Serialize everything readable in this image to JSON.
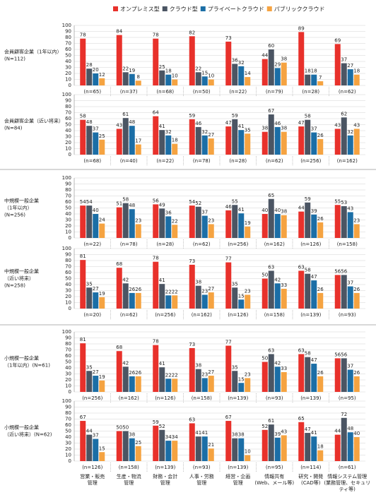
{
  "chart_data": [
    {
      "type": "bar",
      "title": [
        "会員顧客企業（1年以内）",
        "(N=112)"
      ],
      "series": [
        {
          "name": "オンプレミス型",
          "color": "#e8312b",
          "values": [
            78,
            84,
            78,
            82,
            73,
            44,
            89,
            69
          ]
        },
        {
          "name": "クラウド型",
          "color": "#4b5563",
          "values": [
            28,
            22,
            25,
            22,
            36,
            60,
            18,
            37
          ]
        },
        {
          "name": "プライベートクラウド",
          "color": "#1b6ea6",
          "values": [
            20,
            19,
            18,
            15,
            32,
            29,
            18,
            27
          ]
        },
        {
          "name": "パブリッククラウド",
          "color": "#f5a341",
          "values": [
            12,
            8,
            10,
            10,
            14,
            38,
            7,
            18
          ]
        }
      ],
      "n_labels": [
        "(n=65)",
        "(n=37)",
        "(n=68)",
        "(n=50)",
        "(n=22)",
        "(n=79)",
        "(n=28)",
        "(n=62)"
      ],
      "ylim": [
        0,
        100
      ],
      "yticks": [
        0,
        10,
        20,
        30,
        40,
        50,
        60,
        70,
        80,
        90,
        100
      ],
      "grid": true
    },
    {
      "type": "bar",
      "title": [
        "会員顧客企業（近い将来）",
        "(N=84)"
      ],
      "series": [
        {
          "values": [
            58,
            43,
            64,
            59,
            47,
            38,
            47,
            43
          ]
        },
        {
          "values": [
            48,
            61,
            41,
            46,
            59,
            67,
            58,
            62
          ]
        },
        {
          "values": [
            37,
            48,
            32,
            32,
            41,
            46,
            37,
            32
          ]
        },
        {
          "values": [
            25,
            17,
            18,
            27,
            35,
            38,
            26,
            43
          ]
        }
      ],
      "n_labels": [
        "(n=68)",
        "(n=40)",
        "(n=22)",
        "(n=78)",
        "(n=28)",
        "(n=62)",
        "(n=256)",
        "(n=162)"
      ],
      "ylim": [
        0,
        100
      ],
      "yticks": [
        0,
        10,
        20,
        30,
        40,
        50,
        60,
        70,
        80,
        90,
        100
      ],
      "grid": true
    },
    {
      "type": "bar",
      "title": [
        "中規模一般企業",
        "（1年以内）",
        "(N=256)"
      ],
      "series": [
        {
          "values": [
            54,
            51,
            56,
            54,
            46,
            40,
            44,
            55
          ]
        },
        {
          "values": [
            54,
            58,
            49,
            52,
            55,
            65,
            59,
            53
          ]
        },
        {
          "values": [
            40,
            48,
            36,
            37,
            41,
            40,
            39,
            43
          ]
        },
        {
          "values": [
            24,
            23,
            22,
            23,
            19,
            38,
            26,
            23
          ]
        }
      ],
      "n_labels": [
        "(n=22)",
        "(n=78)",
        "(n=28)",
        "(n=62)",
        "(n=256)",
        "(n=162)",
        "(n=126)",
        "(n=158)"
      ],
      "ylim": [
        0,
        100
      ],
      "yticks": [
        0,
        10,
        20,
        30,
        40,
        50,
        60,
        70,
        80,
        90,
        100
      ],
      "grid": true
    },
    {
      "type": "bar",
      "title": [
        "中規模一般企業",
        "（近い将来）",
        "(N=258)"
      ],
      "series": [
        {
          "values": [
            81,
            68,
            78,
            73,
            77,
            50,
            63,
            56
          ]
        },
        {
          "values": [
            35,
            42,
            41,
            38,
            35,
            63,
            58,
            56
          ]
        },
        {
          "values": [
            27,
            26,
            22,
            23,
            15,
            42,
            47,
            37
          ]
        },
        {
          "values": [
            19,
            26,
            22,
            27,
            23,
            33,
            26,
            26
          ]
        }
      ],
      "n_labels": [
        "(n=20)",
        "(n=62)",
        "(n=256)",
        "(n=162)",
        "(n=126)",
        "(n=158)",
        "(n=139)",
        "(n=93)"
      ],
      "ylim": [
        0,
        100
      ],
      "yticks": [
        0,
        10,
        20,
        30,
        40,
        50,
        60,
        70,
        80,
        90,
        100
      ],
      "grid": true
    },
    {
      "type": "bar",
      "title": [
        "小規模一般企業",
        "（1年以内）(N=61)"
      ],
      "series": [
        {
          "values": [
            81,
            68,
            78,
            73,
            77,
            50,
            63,
            56
          ]
        },
        {
          "values": [
            35,
            42,
            41,
            38,
            35,
            63,
            58,
            56
          ]
        },
        {
          "values": [
            27,
            26,
            22,
            23,
            15,
            42,
            47,
            37
          ]
        },
        {
          "values": [
            19,
            26,
            22,
            27,
            23,
            33,
            26,
            26
          ]
        }
      ],
      "n_labels": [
        "(n=256)",
        "(n=162)",
        "(n=126)",
        "(n=158)",
        "(n=139)",
        "(n=93)",
        "(n=139)",
        "(n=95)"
      ],
      "ylim": [
        0,
        100
      ],
      "yticks": [
        0,
        10,
        20,
        30,
        40,
        50,
        60,
        70,
        80,
        90,
        100
      ],
      "grid": true
    },
    {
      "type": "bar",
      "title": [
        "小規模一般企業",
        "（近い将来）(N=62)"
      ],
      "series": [
        {
          "values": [
            67,
            50,
            59,
            63,
            67,
            52,
            65,
            44
          ]
        },
        {
          "values": [
            44,
            50,
            52,
            41,
            38,
            61,
            47,
            72
          ]
        },
        {
          "values": [
            37,
            38,
            34,
            41,
            38,
            39,
            41,
            48
          ]
        },
        {
          "values": [
            15,
            25,
            34,
            21,
            10,
            43,
            18,
            40
          ]
        }
      ],
      "n_labels": [
        "(n=126)",
        "(n=158)",
        "(n=139)",
        "(n=93)",
        "(n=139)",
        "(n=95)",
        "(n=114)",
        "(n=61)"
      ],
      "categories": [
        [
          "営業・販売",
          "管理"
        ],
        [
          "生産・物流",
          "管理"
        ],
        [
          "財務・会計",
          "管理"
        ],
        [
          "人事・労務",
          "管理"
        ],
        [
          "経営・企画",
          "管理"
        ],
        [
          "情報共有",
          "(Web、メール等)"
        ],
        [
          "研究・開発",
          "(CAD等)"
        ],
        [
          "情報システム管理",
          "(業務管理、セキュリ",
          "ティ等)"
        ]
      ],
      "ylim": [
        0,
        100
      ],
      "yticks": [
        0,
        10,
        20,
        30,
        40,
        50,
        60,
        70,
        80,
        90,
        100
      ],
      "grid": true
    }
  ]
}
